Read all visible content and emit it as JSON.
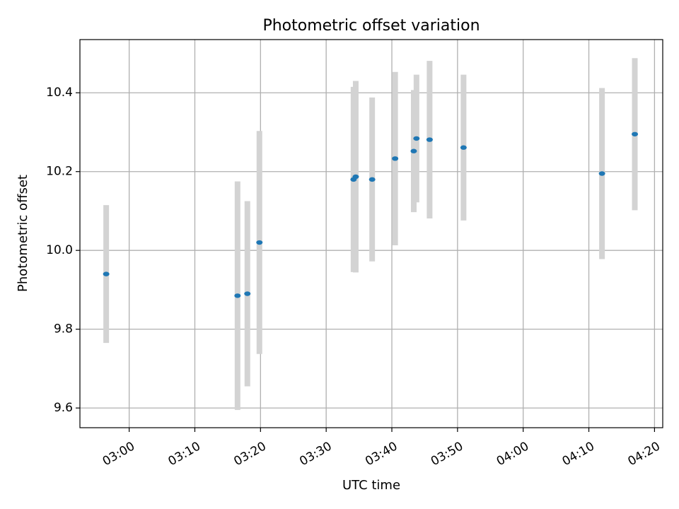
{
  "chart_data": {
    "type": "scatter",
    "title": "Photometric offset variation",
    "xlabel": "UTC time",
    "ylabel": "Photometric offset",
    "x_axis_kind": "time",
    "xlim": [
      "02:52:30",
      "04:21:15"
    ],
    "ylim": [
      9.55,
      10.535
    ],
    "grid": true,
    "legend": "none",
    "x_ticks": [
      "03:00",
      "03:10",
      "03:20",
      "03:30",
      "03:40",
      "03:50",
      "04:00",
      "04:10",
      "04:20"
    ],
    "y_ticks": [
      9.6,
      9.8,
      10.0,
      10.2,
      10.4
    ],
    "y_tick_labels": [
      "9.6",
      "9.8",
      "10.0",
      "10.2",
      "10.4"
    ],
    "colors": {
      "marker": "#1f77b4",
      "errorbar": "#d3d3d3",
      "grid": "#b0b0b0"
    },
    "series": [
      {
        "points": [
          {
            "x": "02:56:30",
            "y": 9.94,
            "err": 0.175
          },
          {
            "x": "03:16:30",
            "y": 9.885,
            "err": 0.29
          },
          {
            "x": "03:18:00",
            "y": 9.89,
            "err": 0.235
          },
          {
            "x": "03:19:50",
            "y": 10.02,
            "err": 0.283
          },
          {
            "x": "03:34:10",
            "y": 10.18,
            "err": 0.235
          },
          {
            "x": "03:34:30",
            "y": 10.187,
            "err": 0.243
          },
          {
            "x": "03:37:00",
            "y": 10.18,
            "err": 0.208
          },
          {
            "x": "03:40:30",
            "y": 10.233,
            "err": 0.22
          },
          {
            "x": "03:43:20",
            "y": 10.252,
            "err": 0.155
          },
          {
            "x": "03:43:45",
            "y": 10.284,
            "err": 0.162
          },
          {
            "x": "03:45:45",
            "y": 10.281,
            "err": 0.2
          },
          {
            "x": "03:50:55",
            "y": 10.261,
            "err": 0.185
          },
          {
            "x": "04:12:00",
            "y": 10.195,
            "err": 0.217
          },
          {
            "x": "04:17:00",
            "y": 10.295,
            "err": 0.193
          }
        ]
      }
    ]
  }
}
